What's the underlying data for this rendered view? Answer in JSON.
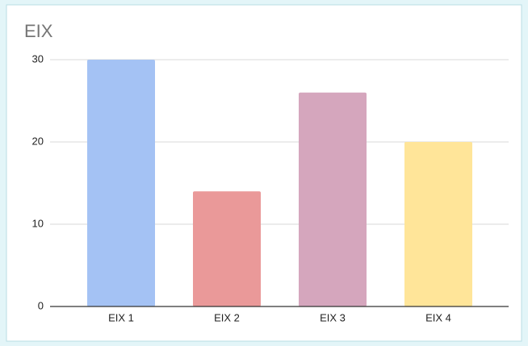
{
  "chart_data": {
    "type": "bar",
    "title": "EIX",
    "categories": [
      "EIX 1",
      "EIX 2",
      "EIX 3",
      "EIX 4"
    ],
    "values": [
      30,
      14,
      26,
      20
    ],
    "colors": [
      "#a4c2f4",
      "#ea9999",
      "#d5a6bd",
      "#ffe599"
    ],
    "ylim": [
      0,
      30
    ],
    "yticks": [
      0,
      10,
      20,
      30
    ],
    "grid": true
  }
}
